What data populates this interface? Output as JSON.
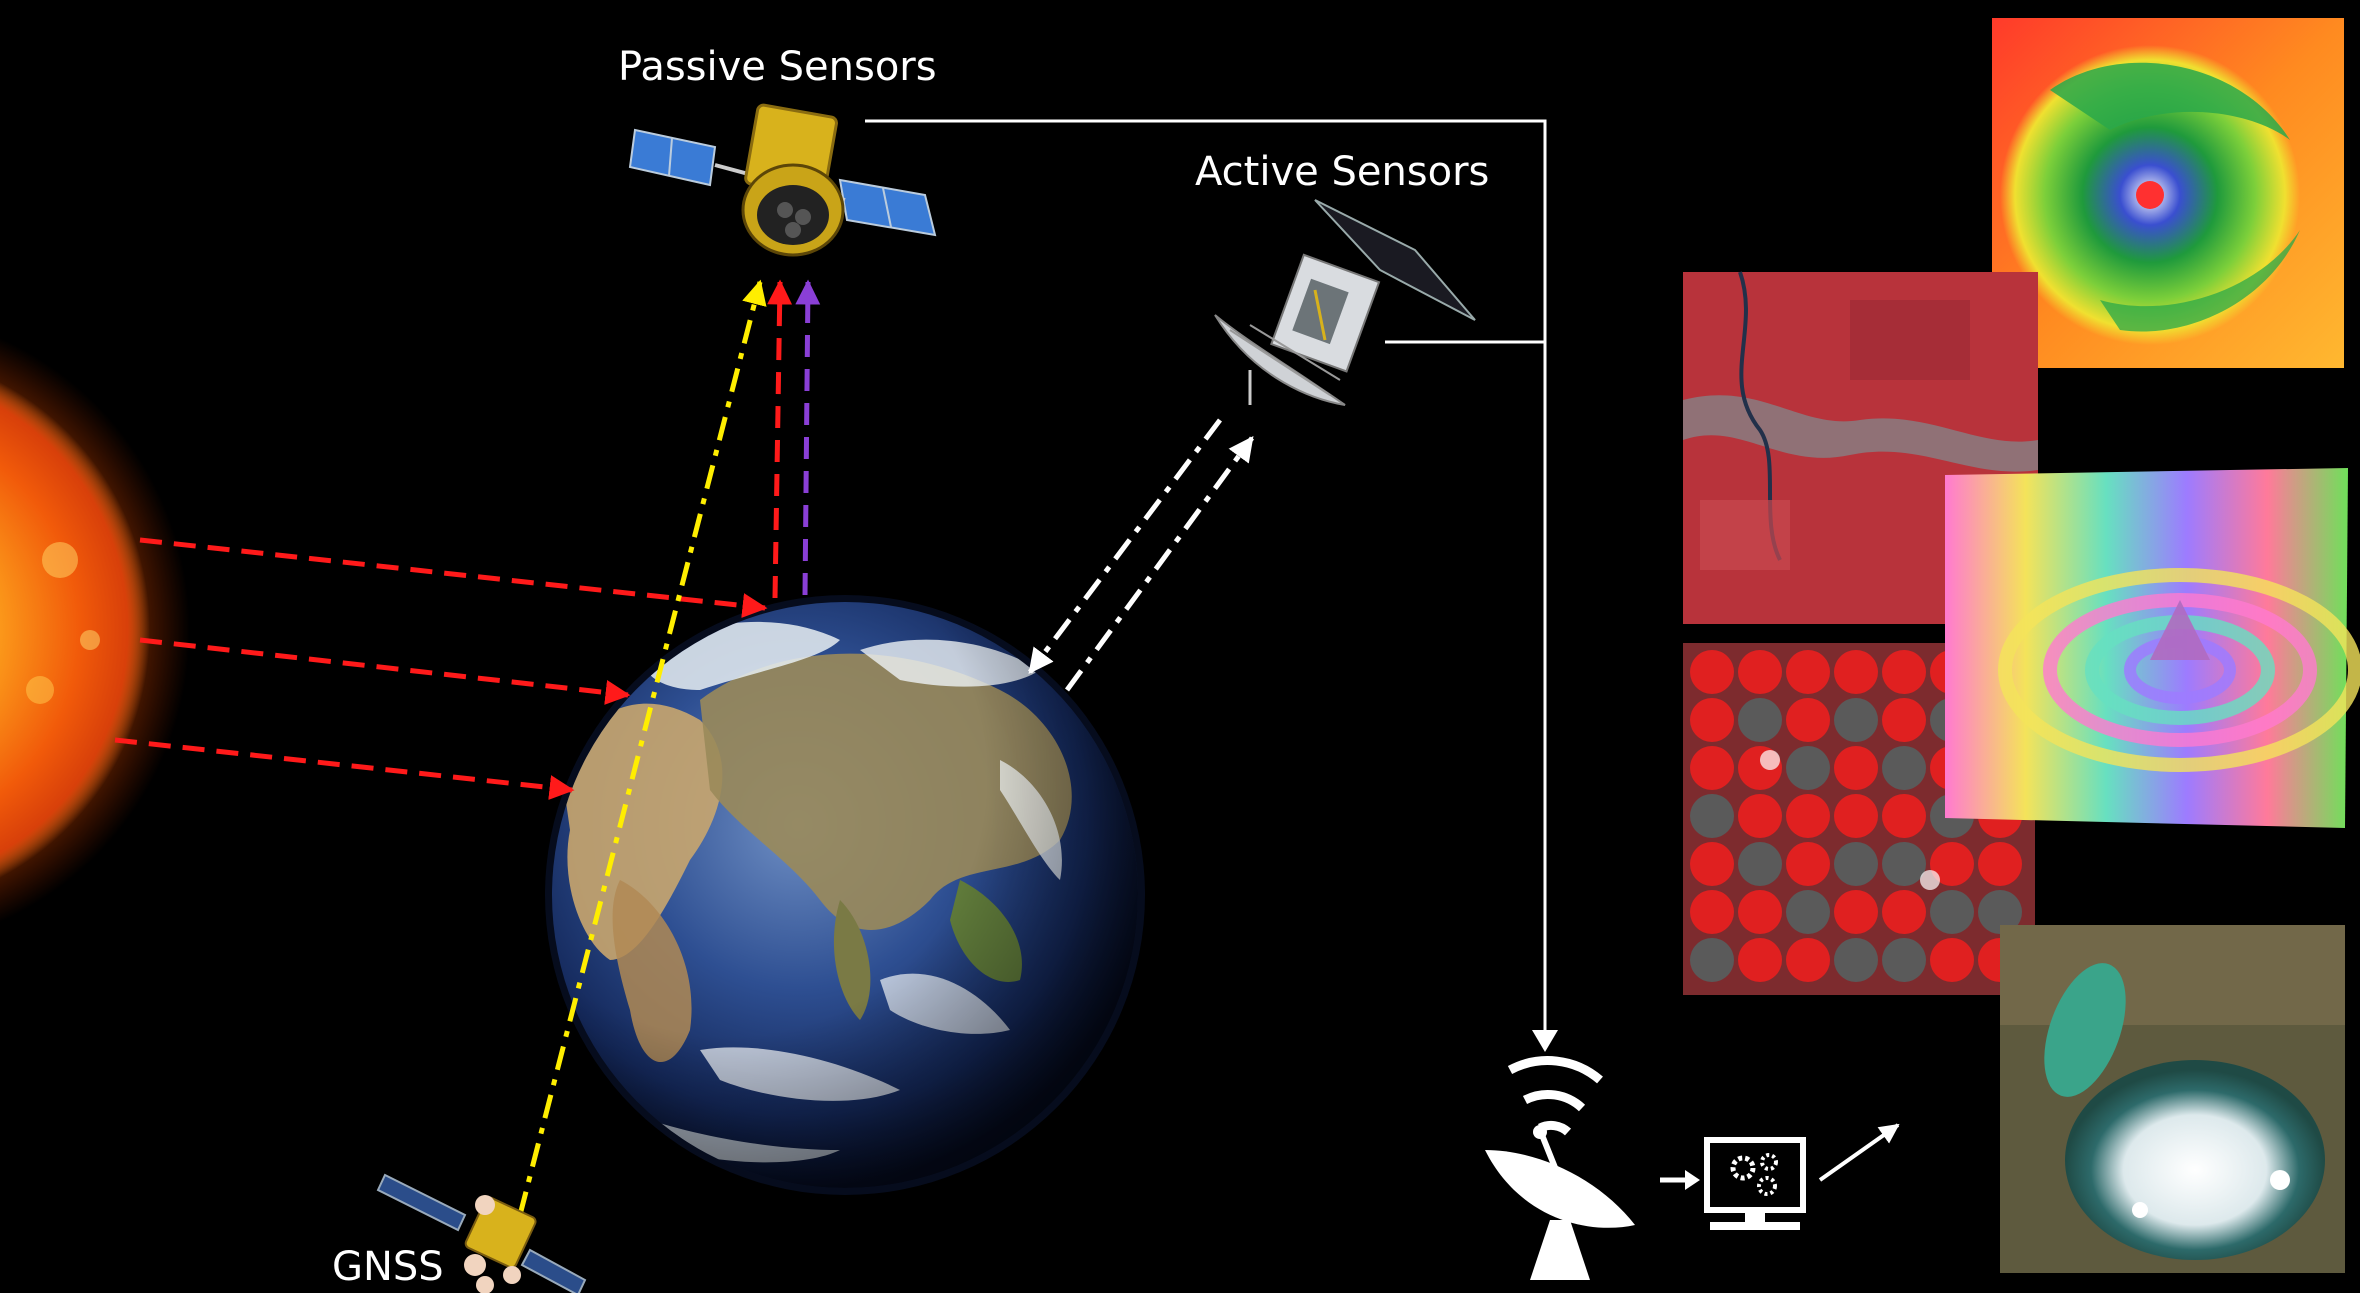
{
  "labels": {
    "passive_sensors": "Passive Sensors",
    "active_sensors": "Active Sensors",
    "gnss": "GNSS"
  },
  "colors": {
    "background": "#000000",
    "solar_ray": "#ff1a1a",
    "gnss_signal": "#ffee00",
    "thermal_emission": "#8a3fd6",
    "radar_signal": "#ffffff",
    "data_link": "#ffffff"
  },
  "icons": {
    "sun": "sun-icon",
    "earth": "earth-globe",
    "passive_satellite": "passive-satellite-icon",
    "active_satellite": "active-satellite-icon",
    "gnss_satellite": "gnss-satellite-icon",
    "ground_station": "satellite-dish-icon",
    "processing_computer": "computer-gears-icon"
  },
  "output_images": [
    "hurricane-thermal-image",
    "false-color-landscape-image",
    "insar-volcano-interferogram",
    "center-pivot-irrigation-image",
    "lake-ice-true-color-image"
  ]
}
